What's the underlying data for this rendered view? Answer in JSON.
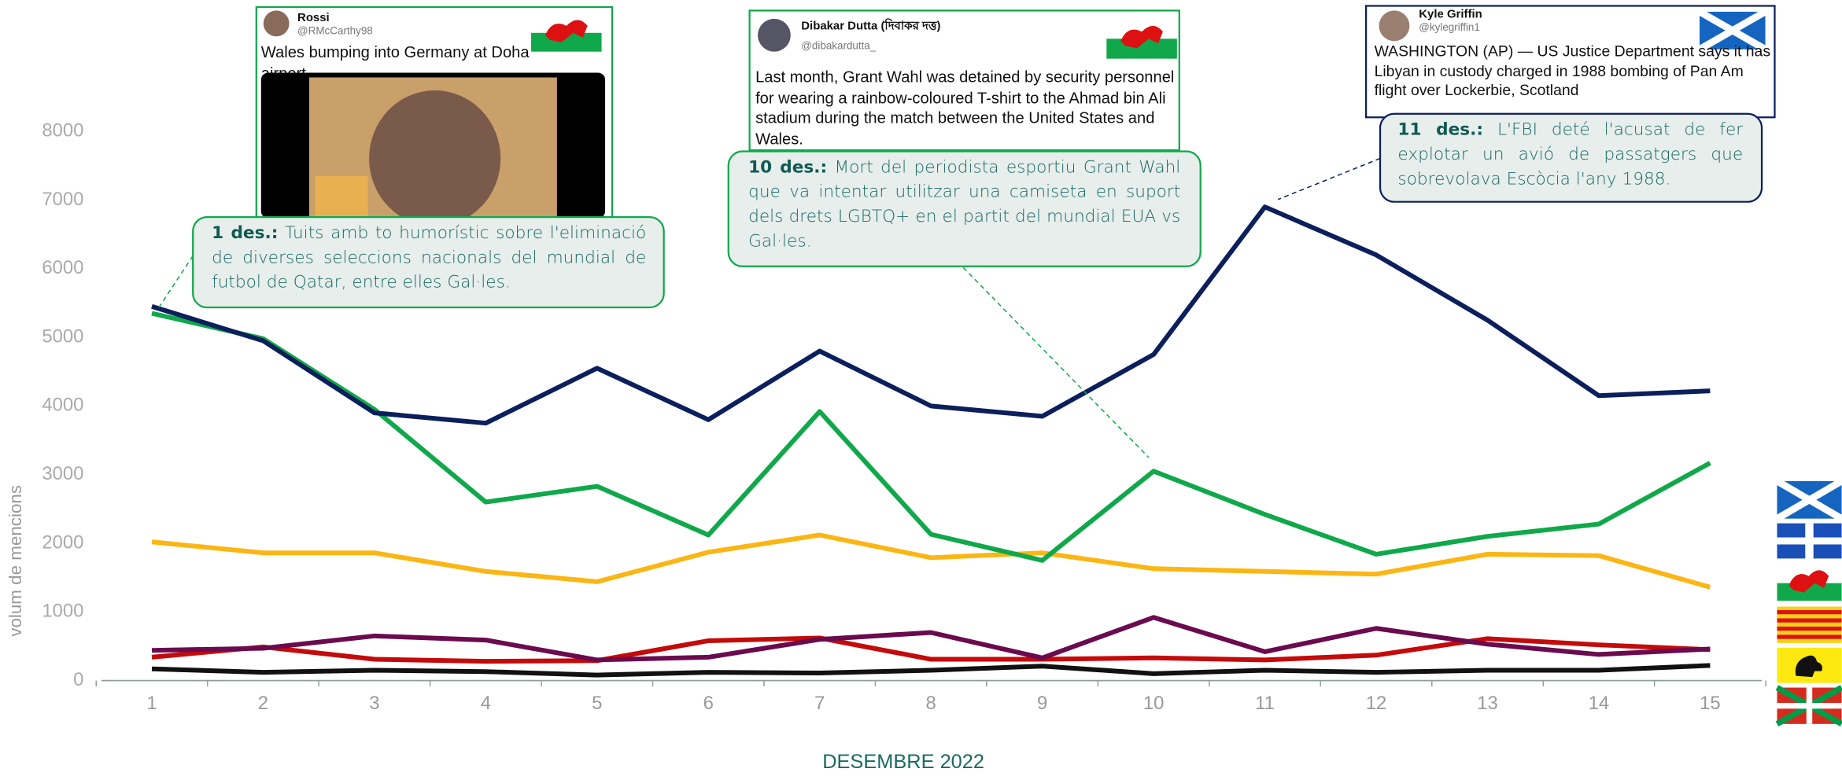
{
  "chart_data": {
    "type": "line",
    "x_label": "DESEMBRE 2022",
    "y_label": "volum de mencions",
    "categories": [
      "1",
      "2",
      "3",
      "4",
      "5",
      "6",
      "7",
      "8",
      "9",
      "10",
      "11",
      "12",
      "13",
      "14",
      "15"
    ],
    "ylim": [
      0,
      8000
    ],
    "yticks": [
      0,
      1000,
      2000,
      3000,
      4000,
      5000,
      6000,
      7000,
      8000
    ],
    "series": [
      {
        "color": "#0b1f5c",
        "values": [
          5450,
          4950,
          3900,
          3750,
          4550,
          3800,
          4800,
          4000,
          3850,
          4750,
          6900,
          6200,
          5250,
          4150,
          4220
        ]
      },
      {
        "color": "#10a84a",
        "values": [
          5350,
          4980,
          3950,
          2600,
          2830,
          2120,
          3920,
          2130,
          1750,
          3050,
          2420,
          1840,
          2100,
          2280,
          3170
        ]
      },
      {
        "color": "#fbb614",
        "values": [
          2020,
          1860,
          1860,
          1590,
          1440,
          1870,
          2120,
          1790,
          1860,
          1630,
          1590,
          1550,
          1840,
          1820,
          1360
        ]
      },
      {
        "color": "#6b0a4e",
        "values": [
          440,
          470,
          650,
          590,
          300,
          340,
          600,
          700,
          330,
          920,
          420,
          760,
          530,
          380,
          460
        ]
      },
      {
        "color": "#c40a0a",
        "values": [
          340,
          490,
          310,
          280,
          290,
          580,
          620,
          310,
          310,
          330,
          300,
          370,
          610,
          520,
          450
        ]
      },
      {
        "color": "#111111",
        "values": [
          170,
          120,
          150,
          130,
          80,
          120,
          110,
          150,
          210,
          100,
          150,
          120,
          150,
          150,
          220
        ]
      }
    ]
  },
  "tweets": [
    {
      "name": "Rossi",
      "handle": "@RMcCarthy98",
      "text": "Wales bumping into Germany at Doha airport"
    },
    {
      "name": "Dibakar Dutta (দিবাকর দত্ত)",
      "handle": "@dibakardutta_",
      "text": "Last month, Grant Wahl was  detained by security personnel for wearing a rainbow-coloured T-shirt to the Ahmad bin Ali stadium during the match between the United States and Wales."
    },
    {
      "name": "Kyle Griffin",
      "handle": "@kylegriffin1",
      "text": "WASHINGTON (AP) — US Justice Department says it has Libyan in custody charged in 1988 bombing of Pan Am flight over Lockerbie, Scotland"
    }
  ],
  "annotations": [
    {
      "date": "1 des.:",
      "text": "Tuits amb to humorístic sobre l'eliminació de diverses seleccions nacionals del mundial de futbol de Qatar, entre elles Gal·les."
    },
    {
      "date": "10 des.:",
      "text": "Mort del periodista esportiu Grant Wahl que va intentar utilitzar una camiseta en suport dels drets LGBTQ+ en el partit del mundial EUA vs Gal·les."
    },
    {
      "date": "11 des.:",
      "text": "L'FBI deté l'acusat de fer explotar un avió de passatgers que sobrevolava Escòcia l'any 1988."
    }
  ]
}
